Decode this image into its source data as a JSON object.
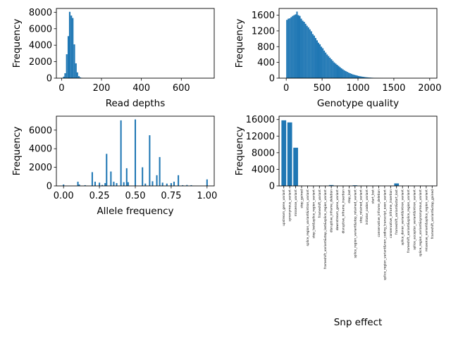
{
  "colors": {
    "bar": "#1f77b4"
  },
  "chart_data": [
    {
      "type": "bar",
      "xlabel": "Read depths",
      "ylabel": "Frequency",
      "xlim": [
        -26,
        765
      ],
      "ylim": [
        0,
        8460
      ],
      "xticks": [
        0,
        200,
        400,
        600
      ],
      "yticks": [
        0,
        2000,
        4000,
        6000,
        8000
      ],
      "bin_width": 7.6,
      "x": [
        3,
        11,
        18,
        26,
        34,
        41,
        49,
        56,
        64,
        72,
        79,
        87,
        94,
        102
      ],
      "values": [
        40,
        180,
        600,
        2900,
        5100,
        8050,
        7600,
        7300,
        4100,
        1800,
        700,
        240,
        90,
        40
      ]
    },
    {
      "type": "bar",
      "xlabel": "Genotype quality",
      "ylabel": "Frequency",
      "xlim": [
        -100,
        2100
      ],
      "ylim": [
        0,
        1770
      ],
      "xticks": [
        0,
        500,
        1000,
        1500,
        2000
      ],
      "yticks": [
        0,
        400,
        800,
        1200,
        1600
      ],
      "bin_width": 20,
      "x": [
        10,
        30,
        50,
        70,
        90,
        110,
        130,
        150,
        170,
        190,
        210,
        230,
        250,
        270,
        290,
        310,
        330,
        350,
        370,
        390,
        410,
        430,
        450,
        470,
        490,
        510,
        530,
        550,
        570,
        590,
        610,
        630,
        650,
        670,
        690,
        710,
        730,
        750,
        770,
        790,
        810,
        830,
        850,
        870,
        890,
        910,
        930,
        950,
        970,
        990,
        1010,
        1030,
        1050,
        1070,
        1090,
        1110,
        1130,
        1150,
        1170,
        1190,
        1210,
        1230,
        1250,
        1270,
        1290,
        1310,
        1330,
        1350
      ],
      "values": [
        1480,
        1510,
        1520,
        1550,
        1580,
        1600,
        1620,
        1690,
        1600,
        1580,
        1510,
        1460,
        1430,
        1380,
        1330,
        1290,
        1240,
        1190,
        1120,
        1080,
        1020,
        960,
        900,
        860,
        800,
        760,
        700,
        650,
        600,
        560,
        520,
        480,
        440,
        400,
        370,
        340,
        310,
        280,
        250,
        225,
        200,
        180,
        160,
        140,
        125,
        110,
        95,
        85,
        75,
        65,
        55,
        48,
        42,
        36,
        30,
        25,
        21,
        18,
        15,
        12,
        10,
        8,
        6,
        5,
        4,
        3,
        2,
        1
      ]
    },
    {
      "type": "bar",
      "xlabel": "Allele frequency",
      "ylabel": "Frequency",
      "xlim": [
        -0.05,
        1.05
      ],
      "ylim": [
        0,
        7500
      ],
      "xticks": [
        "0.00",
        "0.25",
        "0.50",
        "0.75",
        "1.00"
      ],
      "yticks": [
        0,
        2000,
        4000,
        6000
      ],
      "bin_width": 0.01,
      "x": [
        0.0,
        0.1,
        0.11,
        0.15,
        0.2,
        0.22,
        0.25,
        0.27,
        0.29,
        0.3,
        0.33,
        0.35,
        0.37,
        0.4,
        0.42,
        0.44,
        0.45,
        0.5,
        0.55,
        0.57,
        0.6,
        0.62,
        0.65,
        0.67,
        0.69,
        0.72,
        0.75,
        0.77,
        0.8,
        0.83,
        0.86,
        0.89,
        1.0
      ],
      "values": [
        150,
        450,
        150,
        80,
        1480,
        450,
        350,
        100,
        300,
        3450,
        1550,
        450,
        300,
        7050,
        400,
        1900,
        400,
        7150,
        2000,
        250,
        5450,
        500,
        1150,
        3100,
        350,
        250,
        300,
        450,
        1150,
        80,
        100,
        80,
        700
      ]
    },
    {
      "type": "bar",
      "xlabel": "Snp effect",
      "ylabel": "Frequency",
      "ylim": [
        0,
        16800
      ],
      "yticks": [
        0,
        4000,
        8000,
        12000,
        16000
      ],
      "categories": [
        "upstream_gene_variant",
        "synonymous_variant",
        "missense_variant",
        "stop_gained",
        "splice_region_variant&intron_variant",
        "stop_lost&splice_region_variant",
        "frameshift_variant",
        "frameshift_variant&stop_lost&splice_region_variant",
        "disruptive_inframe_deletion",
        "downstream_gene_variant",
        "disruptive_inframe_insertion",
        "stop_lost",
        "splice_region_variant&stop_retained_variant",
        "stop_retained_variant",
        "initiator_codon_variant",
        "start_lost",
        "conservative_inframe_deletion",
        "splice_region_variant&non_coding_transcript_exon_variant",
        "conservative_inframe_insertion",
        "frameshift_variant&start_lost",
        "splice_donor_variant&intron_variant",
        "frameshift_variant&splice_region_variant",
        "splice_acceptor_variant&intron_variant",
        "splice_region_variant&synonymous_variant",
        "missense_variant&splice_region_variant",
        "frameshift_variant&stop_gained"
      ],
      "values": [
        15800,
        15300,
        9200,
        60,
        40,
        30,
        60,
        30,
        200,
        40,
        40,
        30,
        150,
        40,
        40,
        30,
        40,
        30,
        30,
        600,
        30,
        30,
        30,
        30,
        30,
        30
      ]
    }
  ]
}
